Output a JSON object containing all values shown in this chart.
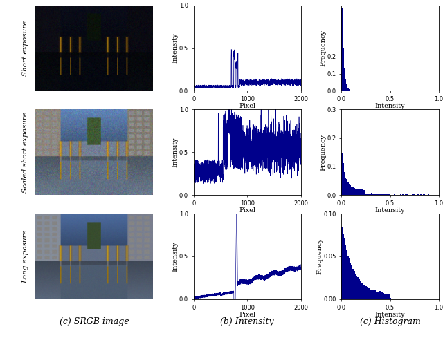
{
  "row_labels": [
    "Short exposure",
    "Scaled short exposure",
    "Long exposure"
  ],
  "col_labels": [
    "(c) SRGB image",
    "(b) Intensity",
    "(c) Histogram"
  ],
  "intensity_plots": [
    {
      "ylim": [
        0.0,
        1.0
      ],
      "xlim": [
        0,
        2000
      ],
      "yticks": [
        0.0,
        0.5,
        1.0
      ],
      "xticks": [
        0,
        1000,
        2000
      ],
      "xlabel": "Pixel",
      "ylabel": "Intensity"
    },
    {
      "ylim": [
        0.0,
        1.0
      ],
      "xlim": [
        0,
        2000
      ],
      "yticks": [
        0.0,
        0.5,
        1.0
      ],
      "xticks": [
        0,
        1000,
        2000
      ],
      "xlabel": "Pixel",
      "ylabel": "Intensity"
    },
    {
      "ylim": [
        0.0,
        1.0
      ],
      "xlim": [
        0,
        2000
      ],
      "yticks": [
        0.0,
        0.5,
        1.0
      ],
      "xticks": [
        0,
        1000,
        2000
      ],
      "xlabel": "Pixel",
      "ylabel": "Intensity"
    }
  ],
  "histogram_plots": [
    {
      "ylim": [
        0.0,
        0.5
      ],
      "xlim": [
        0.0,
        1.0
      ],
      "yticks": [
        0.0,
        0.1,
        0.2
      ],
      "xticks": [
        0.0,
        0.5,
        1.0
      ],
      "xlabel": "Intensity",
      "ylabel": "Frequency"
    },
    {
      "ylim": [
        0.0,
        0.3
      ],
      "xlim": [
        0.0,
        1.0
      ],
      "yticks": [
        0.0,
        0.1,
        0.2,
        0.3
      ],
      "xticks": [
        0.0,
        0.5,
        1.0
      ],
      "xlabel": "Intensity",
      "ylabel": "Frequency"
    },
    {
      "ylim": [
        0.0,
        0.1
      ],
      "xlim": [
        0.0,
        1.0
      ],
      "yticks": [
        0.0,
        0.05,
        0.1
      ],
      "xticks": [
        0.0,
        0.5,
        1.0
      ],
      "xlabel": "Intensity",
      "ylabel": "Frequency"
    }
  ],
  "line_color": "#00008B",
  "bar_color": "#00008B",
  "font_size": 7,
  "tick_size": 6
}
